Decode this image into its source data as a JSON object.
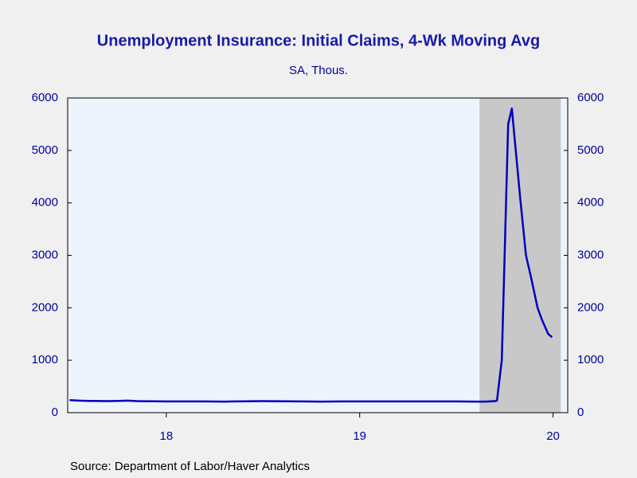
{
  "chart_data": {
    "type": "line",
    "title": "Unemployment Insurance: Initial Claims, 4-Wk Moving Avg",
    "subtitle": "SA, Thous.",
    "source": "Source:  Department of Labor/Haver Analytics",
    "x": [
      2018.0,
      2018.05,
      2018.1,
      2018.2,
      2018.25,
      2018.3,
      2018.35,
      2018.5,
      2018.7,
      2018.8,
      2018.85,
      2019.0,
      2019.2,
      2019.3,
      2019.4,
      2019.6,
      2019.75,
      2019.8,
      2020.0,
      2020.05,
      2020.1,
      2020.15,
      2020.2,
      2020.21,
      2020.235,
      2020.268,
      2020.287,
      2020.33,
      2020.36,
      2020.385,
      2020.42,
      2020.445,
      2020.475,
      2020.495
    ],
    "series": [
      {
        "name": "Initial Claims, 4-Wk Moving Avg",
        "color": "#0000c0",
        "values": [
          240,
          230,
          225,
          220,
          225,
          230,
          220,
          215,
          215,
          210,
          215,
          220,
          215,
          210,
          215,
          215,
          215,
          215,
          215,
          212,
          210,
          210,
          220,
          230,
          1000,
          5500,
          5800,
          4100,
          3000,
          2600,
          2000,
          1750,
          1500,
          1440
        ]
      }
    ],
    "shading": [
      2020.12,
      2020.54
    ],
    "shading_color": "#c8c8c8",
    "xlim": [
      2017.99,
      2020.576
    ],
    "xticks": [
      {
        "value": 2018.5,
        "label": "18"
      },
      {
        "value": 2019.5,
        "label": "19"
      },
      {
        "value": 2020.5,
        "label": "20"
      }
    ],
    "ylim": [
      0,
      6000
    ],
    "yticks": [
      0,
      1000,
      2000,
      3000,
      4000,
      5000,
      6000
    ],
    "y2lim": [
      0,
      6000
    ],
    "y2ticks": [
      0,
      1000,
      2000,
      3000,
      4000,
      5000,
      6000
    ]
  }
}
